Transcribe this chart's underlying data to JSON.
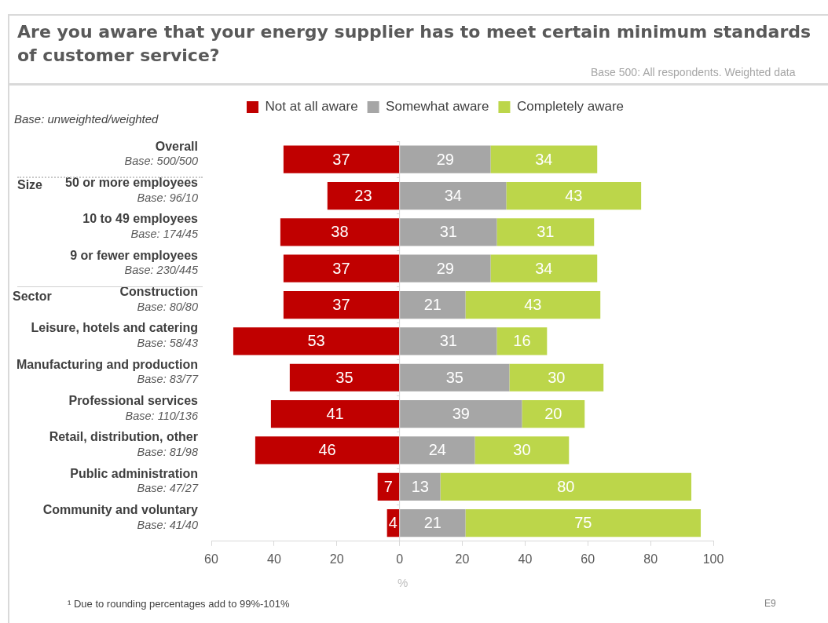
{
  "chart_data": {
    "type": "bar",
    "orientation": "horizontal",
    "title": "Are you aware that your energy supplier has to meet certain minimum standards of customer service?",
    "subtitle": "Base 500: All respondents. Weighted data",
    "xlabel": "%",
    "categories": [
      "Overall\nBase: 500/500",
      "50 or more employees\nBase: 96/10",
      "10 to 49 employees\nBase: 174/45",
      "9 or fewer employees\nBase: 230/445",
      "Construction\nBase: 80/80",
      "Leisure, hotels and catering\nBase: 58/43",
      "Manufacturing and production\nBase: 83/77",
      "Professional services\nBase: 110/136",
      "Retail, distribution, other\nBase: 81/98",
      "Public administration\nBase: 47/27",
      "Community and voluntary\nBase: 41/40"
    ],
    "series": [
      {
        "name": "Not at all aware",
        "color": "#c00000",
        "values": [
          37,
          23,
          38,
          37,
          37,
          53,
          35,
          41,
          46,
          7,
          4
        ],
        "base": [
          -37,
          -23,
          -38,
          -37,
          -37,
          -53,
          -35,
          -41,
          -46,
          -7,
          -4
        ]
      },
      {
        "name": "Somewhat aware",
        "color": "#a6a6a6",
        "values": [
          29,
          34,
          31,
          29,
          21,
          31,
          35,
          39,
          24,
          13,
          21
        ],
        "base": [
          0,
          0,
          0,
          0,
          0,
          0,
          0,
          0,
          0,
          0,
          0
        ]
      },
      {
        "name": "Completely aware",
        "color": "#bcd64a",
        "values": [
          34,
          43,
          31,
          34,
          43,
          16,
          30,
          20,
          30,
          80,
          75
        ],
        "base": [
          29,
          34,
          31,
          29,
          21,
          31,
          35,
          39,
          24,
          13,
          21
        ]
      }
    ],
    "xlim": [
      -60,
      100
    ],
    "xticks": [
      {
        "value": -60,
        "label": "60"
      },
      {
        "value": -40,
        "label": "40"
      },
      {
        "value": -20,
        "label": "20"
      },
      0,
      20,
      40,
      60,
      80,
      100
    ],
    "ref_lines": [
      {
        "axis": "x",
        "value": 0,
        "color": "#d9d9d9"
      }
    ],
    "data_labels": true,
    "legend": "top",
    "grid": false,
    "annotations": [
      "Base: unweighted/weighted",
      "Size",
      "Sector",
      "¹ Due to rounding percentages add to 99%-101%",
      "E9"
    ]
  }
}
